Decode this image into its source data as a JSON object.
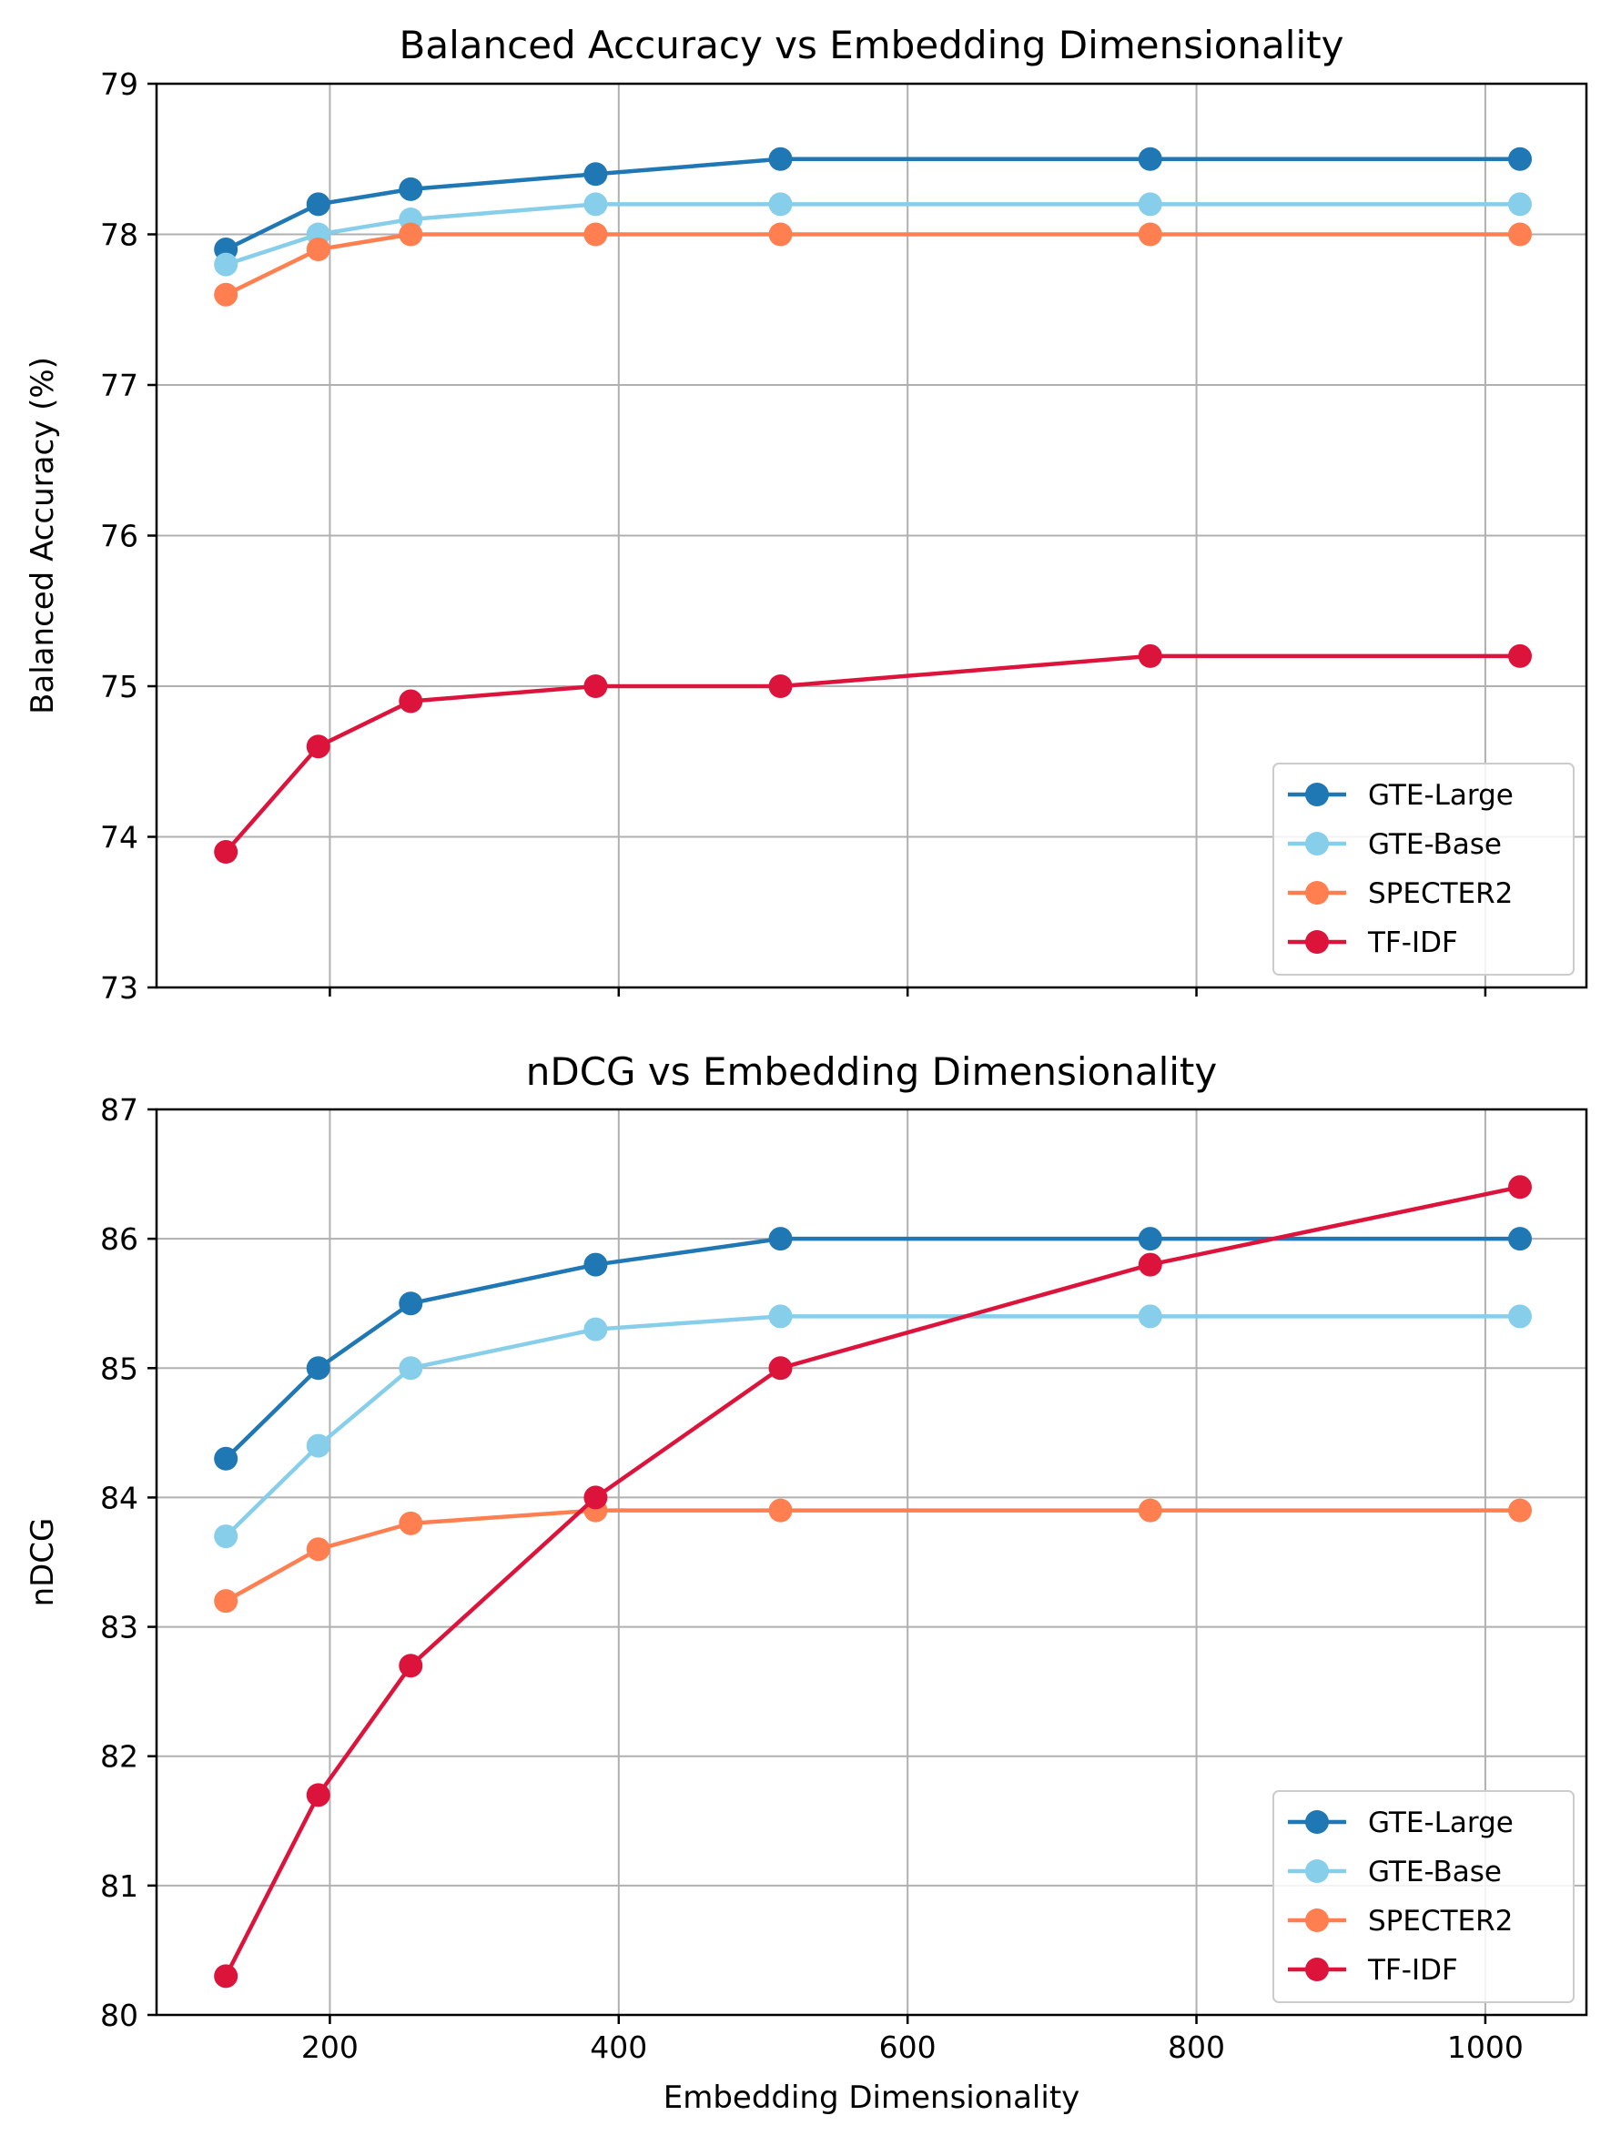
{
  "chart_data": [
    {
      "type": "line",
      "title": "Balanced Accuracy vs Embedding Dimensionality",
      "xlabel": "",
      "ylabel": "Balanced Accuracy (%)",
      "xlim": [
        80,
        1070
      ],
      "ylim": [
        73,
        79
      ],
      "xticks": [
        200,
        400,
        600,
        800,
        1000
      ],
      "xtick_labels_visible": false,
      "yticks": [
        73,
        74,
        75,
        76,
        77,
        78,
        79
      ],
      "grid": true,
      "legend_position": "lower-right",
      "x": [
        128,
        192,
        256,
        384,
        512,
        768,
        1024
      ],
      "series": [
        {
          "name": "GTE-Large",
          "color": "#1f77b4",
          "values": [
            77.9,
            78.2,
            78.3,
            78.4,
            78.5,
            78.5,
            78.5
          ]
        },
        {
          "name": "GTE-Base",
          "color": "#87ceeb",
          "values": [
            77.8,
            78.0,
            78.1,
            78.2,
            78.2,
            78.2,
            78.2
          ]
        },
        {
          "name": "SPECTER2",
          "color": "#ff7f50",
          "values": [
            77.6,
            77.9,
            78.0,
            78.0,
            78.0,
            78.0,
            78.0
          ]
        },
        {
          "name": "TF-IDF",
          "color": "#dc143c",
          "values": [
            73.9,
            74.6,
            74.9,
            75.0,
            75.0,
            75.2,
            75.2
          ]
        }
      ]
    },
    {
      "type": "line",
      "title": "nDCG vs Embedding Dimensionality",
      "xlabel": "Embedding Dimensionality",
      "ylabel": "nDCG",
      "xlim": [
        80,
        1070
      ],
      "ylim": [
        80,
        87
      ],
      "xticks": [
        200,
        400,
        600,
        800,
        1000
      ],
      "xtick_labels_visible": true,
      "yticks": [
        80,
        81,
        82,
        83,
        84,
        85,
        86,
        87
      ],
      "grid": true,
      "legend_position": "lower-right",
      "x": [
        128,
        192,
        256,
        384,
        512,
        768,
        1024
      ],
      "series": [
        {
          "name": "GTE-Large",
          "color": "#1f77b4",
          "values": [
            84.3,
            85.0,
            85.5,
            85.8,
            86.0,
            86.0,
            86.0
          ]
        },
        {
          "name": "GTE-Base",
          "color": "#87ceeb",
          "values": [
            83.7,
            84.4,
            85.0,
            85.3,
            85.4,
            85.4,
            85.4
          ]
        },
        {
          "name": "SPECTER2",
          "color": "#ff7f50",
          "values": [
            83.2,
            83.6,
            83.8,
            83.9,
            83.9,
            83.9,
            83.9
          ]
        },
        {
          "name": "TF-IDF",
          "color": "#dc143c",
          "values": [
            80.3,
            81.7,
            82.7,
            84.0,
            85.0,
            85.8,
            86.4
          ]
        }
      ]
    }
  ]
}
